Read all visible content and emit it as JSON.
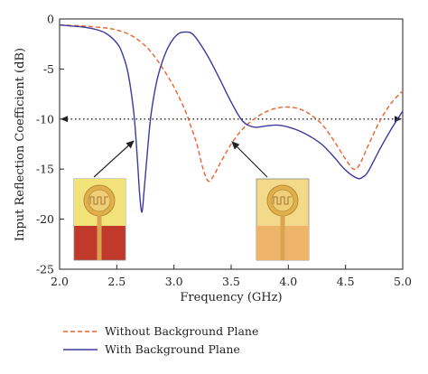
{
  "chart_data": {
    "type": "line",
    "title": "",
    "xlabel": "Frequency (GHz)",
    "ylabel": "Input Reflection Coefficient (dB)",
    "xlim": [
      2.0,
      5.0
    ],
    "ylim": [
      -25,
      0
    ],
    "x_ticks": [
      "2.0",
      "2.5",
      "3.0",
      "3.5",
      "4.0",
      "4.5",
      "5.0"
    ],
    "y_ticks": [
      "0",
      "-5",
      "-10",
      "-15",
      "-20",
      "-25"
    ],
    "grid": false,
    "legend_position": "below",
    "reference_line": {
      "y": -10,
      "style": "dotted",
      "color": "#222222"
    },
    "series": [
      {
        "name": "Without Background Plane",
        "style": "dashed",
        "color": "#e8632a",
        "points": [
          [
            2.0,
            -0.6
          ],
          [
            2.2,
            -0.7
          ],
          [
            2.4,
            -0.9
          ],
          [
            2.5,
            -1.1
          ],
          [
            2.6,
            -1.5
          ],
          [
            2.7,
            -2.2
          ],
          [
            2.8,
            -3.3
          ],
          [
            2.9,
            -4.9
          ],
          [
            3.0,
            -6.8
          ],
          [
            3.1,
            -9.2
          ],
          [
            3.15,
            -10.8
          ],
          [
            3.2,
            -12.5
          ],
          [
            3.25,
            -14.8
          ],
          [
            3.3,
            -16.2
          ],
          [
            3.35,
            -15.6
          ],
          [
            3.4,
            -14.5
          ],
          [
            3.5,
            -12.5
          ],
          [
            3.6,
            -11.0
          ],
          [
            3.7,
            -10.0
          ],
          [
            3.8,
            -9.3
          ],
          [
            3.9,
            -8.9
          ],
          [
            4.0,
            -8.8
          ],
          [
            4.1,
            -9.0
          ],
          [
            4.2,
            -9.6
          ],
          [
            4.3,
            -10.6
          ],
          [
            4.4,
            -12.2
          ],
          [
            4.5,
            -14.0
          ],
          [
            4.57,
            -15.0
          ],
          [
            4.62,
            -14.6
          ],
          [
            4.7,
            -12.6
          ],
          [
            4.8,
            -10.2
          ],
          [
            4.9,
            -8.4
          ],
          [
            5.0,
            -7.2
          ]
        ]
      },
      {
        "name": "With Background Plane",
        "style": "solid",
        "color": "#3d3a9e",
        "points": [
          [
            2.0,
            -0.6
          ],
          [
            2.1,
            -0.7
          ],
          [
            2.2,
            -0.8
          ],
          [
            2.3,
            -1.0
          ],
          [
            2.4,
            -1.4
          ],
          [
            2.5,
            -2.4
          ],
          [
            2.55,
            -3.5
          ],
          [
            2.6,
            -5.5
          ],
          [
            2.65,
            -9.5
          ],
          [
            2.68,
            -14.0
          ],
          [
            2.7,
            -17.5
          ],
          [
            2.72,
            -19.3
          ],
          [
            2.74,
            -17.0
          ],
          [
            2.77,
            -13.0
          ],
          [
            2.8,
            -9.5
          ],
          [
            2.85,
            -6.2
          ],
          [
            2.9,
            -4.2
          ],
          [
            2.95,
            -2.8
          ],
          [
            3.0,
            -1.9
          ],
          [
            3.05,
            -1.4
          ],
          [
            3.1,
            -1.3
          ],
          [
            3.15,
            -1.4
          ],
          [
            3.2,
            -2.0
          ],
          [
            3.3,
            -3.8
          ],
          [
            3.4,
            -6.0
          ],
          [
            3.5,
            -8.3
          ],
          [
            3.6,
            -10.2
          ],
          [
            3.7,
            -10.8
          ],
          [
            3.8,
            -10.7
          ],
          [
            3.9,
            -10.6
          ],
          [
            4.0,
            -10.8
          ],
          [
            4.1,
            -11.2
          ],
          [
            4.2,
            -11.8
          ],
          [
            4.3,
            -12.6
          ],
          [
            4.4,
            -13.8
          ],
          [
            4.5,
            -15.1
          ],
          [
            4.6,
            -15.9
          ],
          [
            4.65,
            -15.8
          ],
          [
            4.7,
            -15.2
          ],
          [
            4.8,
            -13.0
          ],
          [
            4.9,
            -11.0
          ],
          [
            5.0,
            -9.2
          ]
        ]
      }
    ]
  }
}
